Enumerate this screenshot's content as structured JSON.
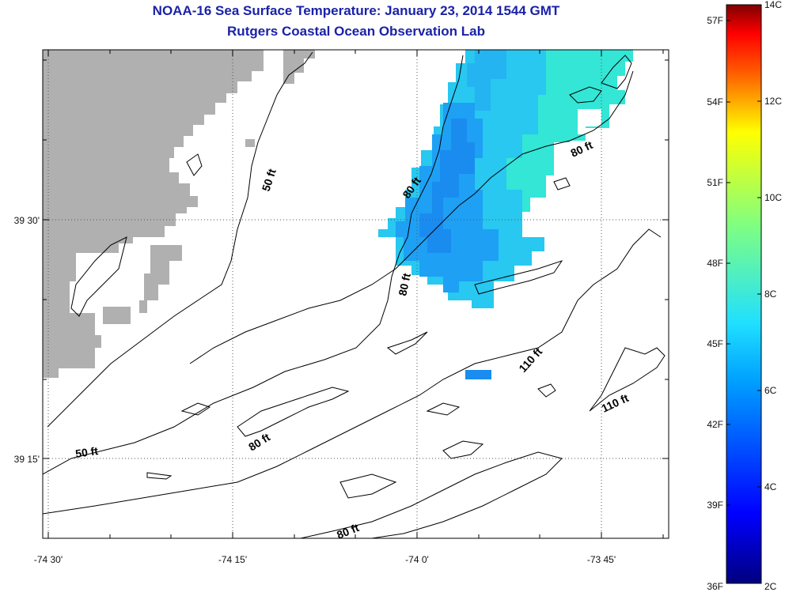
{
  "title": "NOAA-16 Sea Surface Temperature:  January 23, 2014 1544 GMT",
  "subtitle": "Rutgers Coastal Ocean Observation Lab",
  "lon_ticks": [
    "-74 30'",
    "-74 15'",
    "-74 0'",
    "-73 45'"
  ],
  "lat_ticks": [
    "39 30'",
    "39 15'"
  ],
  "contour_labels": [
    "50 ft",
    "80 ft",
    "80 ft",
    "80 ft",
    "80 ft",
    "110 ft",
    "110 ft",
    "50 ft",
    "80 ft"
  ],
  "colorbar": {
    "fahrenheit": [
      "57F",
      "54F",
      "51F",
      "48F",
      "45F",
      "42F",
      "39F",
      "36F"
    ],
    "celsius": [
      "14C",
      "12C",
      "10C",
      "8C",
      "6C",
      "4C",
      "2C"
    ],
    "range_c": [
      2,
      14
    ],
    "colormap": "jet"
  },
  "colors": {
    "title": "#1a22a8",
    "land": "#b0b0b0",
    "sst_cool": "#1e90ff",
    "sst_warm": "#30e8d8"
  }
}
